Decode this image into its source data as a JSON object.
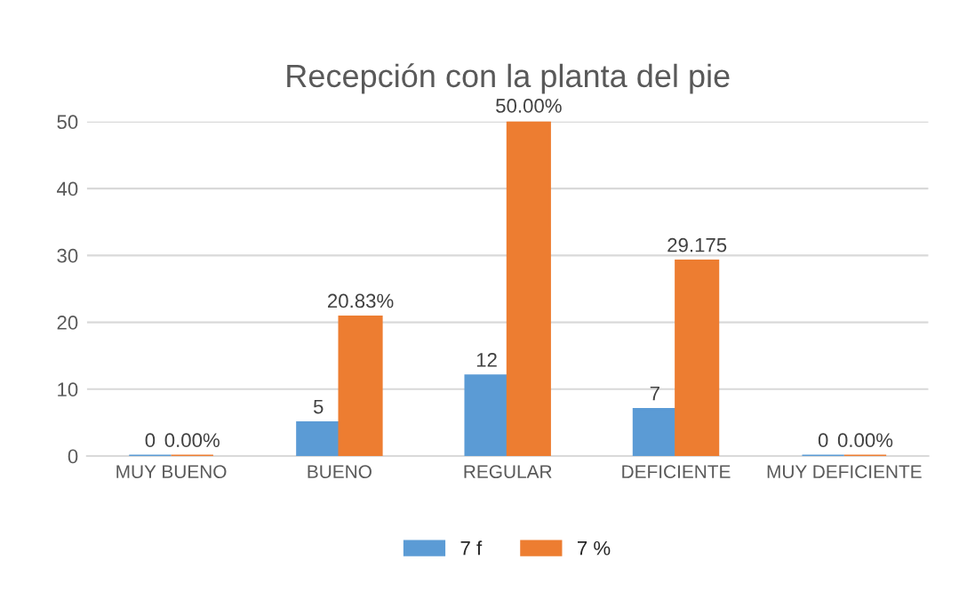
{
  "chart_data": {
    "type": "bar",
    "title": "Recepción con la planta del pie",
    "categories": [
      "MUY BUENO",
      "BUENO",
      "REGULAR",
      "DEFICIENTE",
      "MUY DEFICIENTE"
    ],
    "series": [
      {
        "name": "7 f",
        "color": "#5b9bd5",
        "values": [
          0,
          5,
          12,
          7,
          0
        ],
        "value_labels": [
          "0",
          "5",
          "12",
          "7",
          "0"
        ]
      },
      {
        "name": "7 %",
        "color": "#ed7d31",
        "values": [
          0,
          20.83,
          50,
          29.175,
          0
        ],
        "value_labels": [
          "0.00%",
          "20.83%",
          "50.00%",
          "29.175",
          "0.00%"
        ]
      }
    ],
    "ylim": [
      0,
      50
    ],
    "yticks": [
      0,
      10,
      20,
      30,
      40,
      50
    ],
    "grid": "y",
    "legend": "bottom"
  }
}
